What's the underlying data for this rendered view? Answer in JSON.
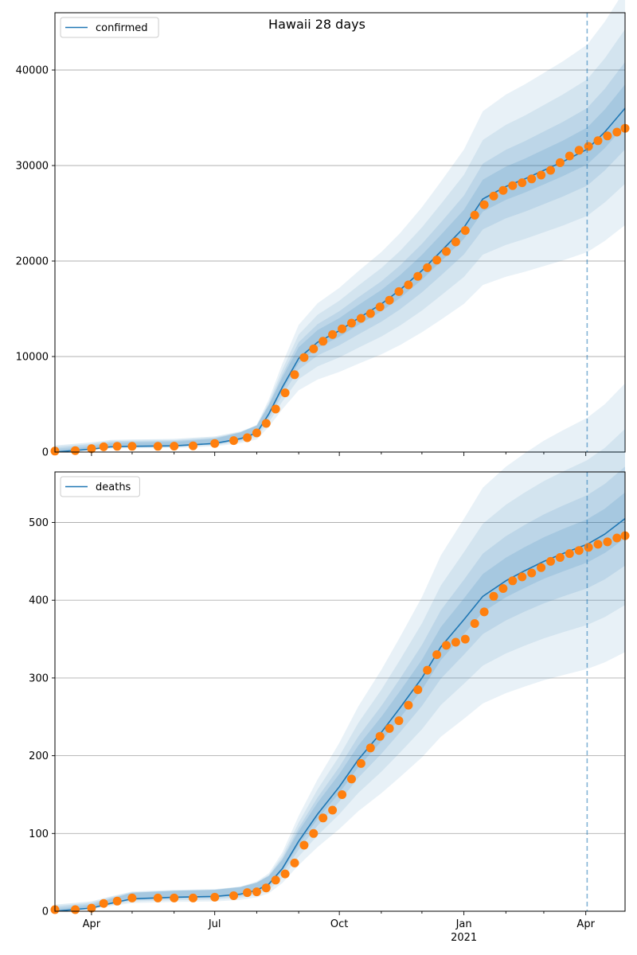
{
  "title": "Hawaii 28 days",
  "colors": {
    "model": "#1f77b4",
    "observed": "#ff7f0e",
    "band": "#1f77b4",
    "grid": "#b0b0b0",
    "forecast_line": "#1f77b4"
  },
  "chart_data": [
    {
      "type": "line",
      "xlim": [
        "2020-03-05",
        "2021-04-30"
      ],
      "ylim": [
        0,
        46000
      ],
      "yticks": [
        0,
        10000,
        20000,
        30000,
        40000
      ],
      "ytick_labels": [
        "0",
        "10000",
        "20000",
        "30000",
        "40000"
      ],
      "grid": "horizontal",
      "legend": "top-left",
      "forecast_start": "2021-04-02",
      "series": [
        {
          "name": "confirmed",
          "kind": "model",
          "x": [
            "2020-03-05",
            "2020-04-01",
            "2020-04-15",
            "2020-05-01",
            "2020-06-01",
            "2020-07-01",
            "2020-07-20",
            "2020-08-01",
            "2020-08-10",
            "2020-08-20",
            "2020-09-01",
            "2020-09-15",
            "2020-10-01",
            "2020-10-15",
            "2020-11-01",
            "2020-11-15",
            "2020-12-01",
            "2020-12-15",
            "2021-01-01",
            "2021-01-15",
            "2021-02-01",
            "2021-02-15",
            "2021-03-01",
            "2021-03-15",
            "2021-04-02",
            "2021-04-15",
            "2021-04-30"
          ],
          "y": [
            0,
            300,
            550,
            600,
            650,
            900,
            1400,
            2000,
            4000,
            6800,
            9800,
            11500,
            12700,
            14000,
            15500,
            17000,
            19000,
            21000,
            23500,
            26500,
            27800,
            28600,
            29500,
            30400,
            31700,
            33500,
            36000
          ]
        },
        {
          "name": "",
          "kind": "observed",
          "x": [
            "2020-03-05",
            "2020-03-20",
            "2020-04-01",
            "2020-04-10",
            "2020-04-20",
            "2020-05-01",
            "2020-05-20",
            "2020-06-01",
            "2020-06-15",
            "2020-07-01",
            "2020-07-15",
            "2020-07-25",
            "2020-08-01",
            "2020-08-08",
            "2020-08-15",
            "2020-08-22",
            "2020-08-29",
            "2020-09-05",
            "2020-09-12",
            "2020-09-19",
            "2020-09-26",
            "2020-10-03",
            "2020-10-10",
            "2020-10-17",
            "2020-10-24",
            "2020-10-31",
            "2020-11-07",
            "2020-11-14",
            "2020-11-21",
            "2020-11-28",
            "2020-12-05",
            "2020-12-12",
            "2020-12-19",
            "2020-12-26",
            "2021-01-02",
            "2021-01-09",
            "2021-01-16",
            "2021-01-23",
            "2021-01-30",
            "2021-02-06",
            "2021-02-13",
            "2021-02-20",
            "2021-02-27",
            "2021-03-06",
            "2021-03-13",
            "2021-03-20",
            "2021-03-27",
            "2021-04-03",
            "2021-04-10",
            "2021-04-17",
            "2021-04-24",
            "2021-04-30"
          ],
          "y": [
            100,
            150,
            350,
            550,
            600,
            600,
            600,
            620,
            650,
            900,
            1200,
            1500,
            2000,
            3000,
            4500,
            6200,
            8100,
            9900,
            10800,
            11600,
            12300,
            12900,
            13500,
            14000,
            14500,
            15200,
            15900,
            16800,
            17500,
            18400,
            19300,
            20100,
            21000,
            22000,
            23200,
            24800,
            25900,
            26800,
            27400,
            27900,
            28200,
            28600,
            29000,
            29500,
            30300,
            31000,
            31600,
            32000,
            32600,
            33100,
            33500,
            33900
          ]
        }
      ]
    },
    {
      "type": "line",
      "xlim": [
        "2020-03-05",
        "2021-04-30"
      ],
      "ylim": [
        0,
        565
      ],
      "yticks": [
        0,
        100,
        200,
        300,
        400,
        500
      ],
      "ytick_labels": [
        "0",
        "100",
        "200",
        "300",
        "400",
        "500"
      ],
      "xticks": [
        "2020-04-01",
        "2020-07-01",
        "2020-10-01",
        "2021-01-01",
        "2021-04-01"
      ],
      "xtick_labels": [
        "Apr",
        "Jul",
        "Oct",
        "Jan",
        "Apr"
      ],
      "year_label": "2021",
      "grid": "horizontal",
      "legend": "top-left",
      "forecast_start": "2021-04-02",
      "series": [
        {
          "name": "deaths",
          "kind": "model",
          "x": [
            "2020-03-05",
            "2020-04-01",
            "2020-04-15",
            "2020-05-01",
            "2020-06-01",
            "2020-07-01",
            "2020-07-20",
            "2020-08-01",
            "2020-08-10",
            "2020-08-20",
            "2020-09-01",
            "2020-09-15",
            "2020-10-01",
            "2020-10-15",
            "2020-11-01",
            "2020-11-15",
            "2020-12-01",
            "2020-12-15",
            "2021-01-01",
            "2021-01-15",
            "2021-02-01",
            "2021-02-15",
            "2021-03-01",
            "2021-03-15",
            "2021-04-02",
            "2021-04-15",
            "2021-04-30"
          ],
          "y": [
            0,
            4,
            10,
            16,
            18,
            19,
            22,
            27,
            35,
            55,
            90,
            125,
            160,
            195,
            230,
            262,
            300,
            340,
            375,
            405,
            425,
            438,
            450,
            460,
            472,
            485,
            505
          ]
        },
        {
          "name": "",
          "kind": "observed",
          "x": [
            "2020-03-05",
            "2020-03-20",
            "2020-04-01",
            "2020-04-10",
            "2020-04-20",
            "2020-05-01",
            "2020-05-20",
            "2020-06-01",
            "2020-06-15",
            "2020-07-01",
            "2020-07-15",
            "2020-07-25",
            "2020-08-01",
            "2020-08-08",
            "2020-08-15",
            "2020-08-22",
            "2020-08-29",
            "2020-09-05",
            "2020-09-12",
            "2020-09-19",
            "2020-09-26",
            "2020-10-03",
            "2020-10-10",
            "2020-10-17",
            "2020-10-24",
            "2020-10-31",
            "2020-11-07",
            "2020-11-14",
            "2020-11-21",
            "2020-11-28",
            "2020-12-05",
            "2020-12-12",
            "2020-12-19",
            "2020-12-26",
            "2021-01-02",
            "2021-01-09",
            "2021-01-16",
            "2021-01-23",
            "2021-01-30",
            "2021-02-06",
            "2021-02-13",
            "2021-02-20",
            "2021-02-27",
            "2021-03-06",
            "2021-03-13",
            "2021-03-20",
            "2021-03-27",
            "2021-04-03",
            "2021-04-10",
            "2021-04-17",
            "2021-04-24",
            "2021-04-30"
          ],
          "y": [
            2,
            2,
            4,
            10,
            13,
            17,
            17,
            17,
            17,
            18,
            20,
            24,
            25,
            30,
            40,
            48,
            62,
            85,
            100,
            120,
            130,
            150,
            170,
            190,
            210,
            225,
            235,
            245,
            265,
            285,
            310,
            330,
            342,
            346,
            350,
            370,
            385,
            405,
            415,
            425,
            430,
            435,
            442,
            450,
            455,
            460,
            464,
            468,
            472,
            475,
            480,
            483
          ]
        }
      ]
    }
  ]
}
